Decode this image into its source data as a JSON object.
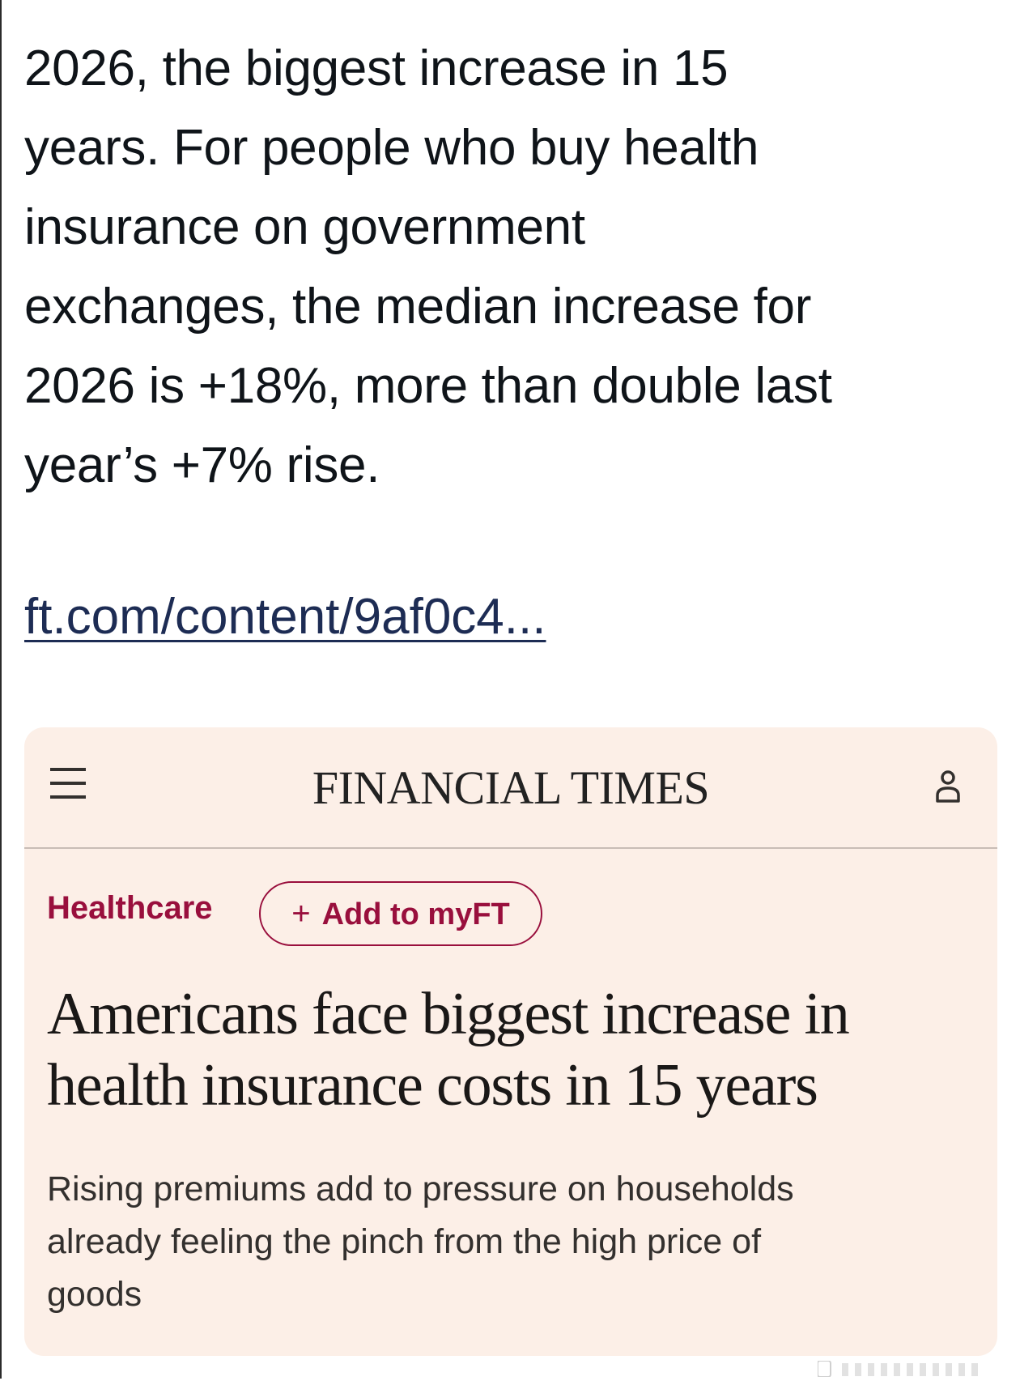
{
  "tweet": {
    "lines": [
      "2026, the biggest increase in 15",
      "years. For people who buy health",
      "insurance on government",
      "exchanges, the median increase for",
      "2026 is +18%, more than double last",
      "year’s +7% rise."
    ],
    "link": "ft.com/content/9af0c4..."
  },
  "card": {
    "masthead": "FINANCIAL TIMES",
    "menu_icon": "hamburger-menu-icon",
    "account_icon": "user-account-icon",
    "topic": "Healthcare",
    "add_button": {
      "plus": "+",
      "label": "Add to myFT"
    },
    "headline_lines": [
      "Americans face biggest increase in",
      "health insurance costs in 15 years"
    ],
    "standfirst_lines": [
      "Rising premiums add to pressure on households",
      "already feeling the pinch from the high price of",
      "goods"
    ]
  },
  "colors": {
    "card_bg": "#fcefe7",
    "ft_claret": "#990f3d",
    "link": "#1d2c54",
    "text": "#0f1419"
  }
}
